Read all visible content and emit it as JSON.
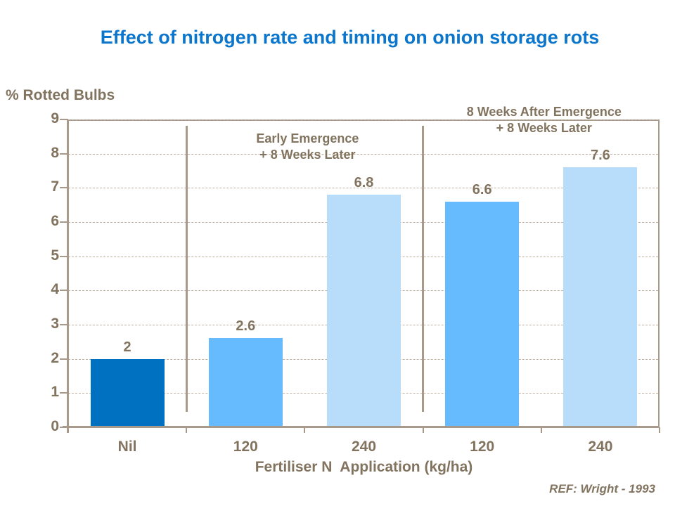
{
  "chart_data": {
    "type": "bar",
    "title": "Effect of nitrogen rate and timing on onion storage rots",
    "ylabel": "% Rotted Bulbs",
    "xlabel": "Fertiliser N  Application (kg/ha)",
    "ylim": [
      0,
      9
    ],
    "ytick_step": 1,
    "grid": "horizontal-dashed",
    "legend": "none",
    "categories": [
      "Nil",
      "120",
      "240",
      "120",
      "240"
    ],
    "values": [
      2,
      2.6,
      6.8,
      6.6,
      7.6
    ],
    "value_labels": [
      "2",
      "2.6",
      "6.8",
      "6.6",
      "7.6"
    ],
    "bar_colors": [
      "#0070C0",
      "#66BBFF",
      "#B8DDFB",
      "#66BBFF",
      "#B8DDFB"
    ],
    "separator_boundaries": [
      1,
      3
    ],
    "annotations": [
      {
        "text": "Early Emergence\n+ 8 Weeks Later",
        "center_category": 2.0
      },
      {
        "text": "8 Weeks After Emergence\n+ 8 Weeks Later",
        "center_category": 4.0
      }
    ],
    "source": "REF: Wright - 1993"
  },
  "colors": {
    "title_blue": "#0B76CC",
    "text_brown": "#82735F",
    "axis_brown": "#A79A8A",
    "gridline_tan": "#BFB0A0",
    "bar_dark_blue": "#0070C0",
    "bar_medium_blue": "#66BBFF",
    "bar_light_blue": "#B8DDFB"
  }
}
